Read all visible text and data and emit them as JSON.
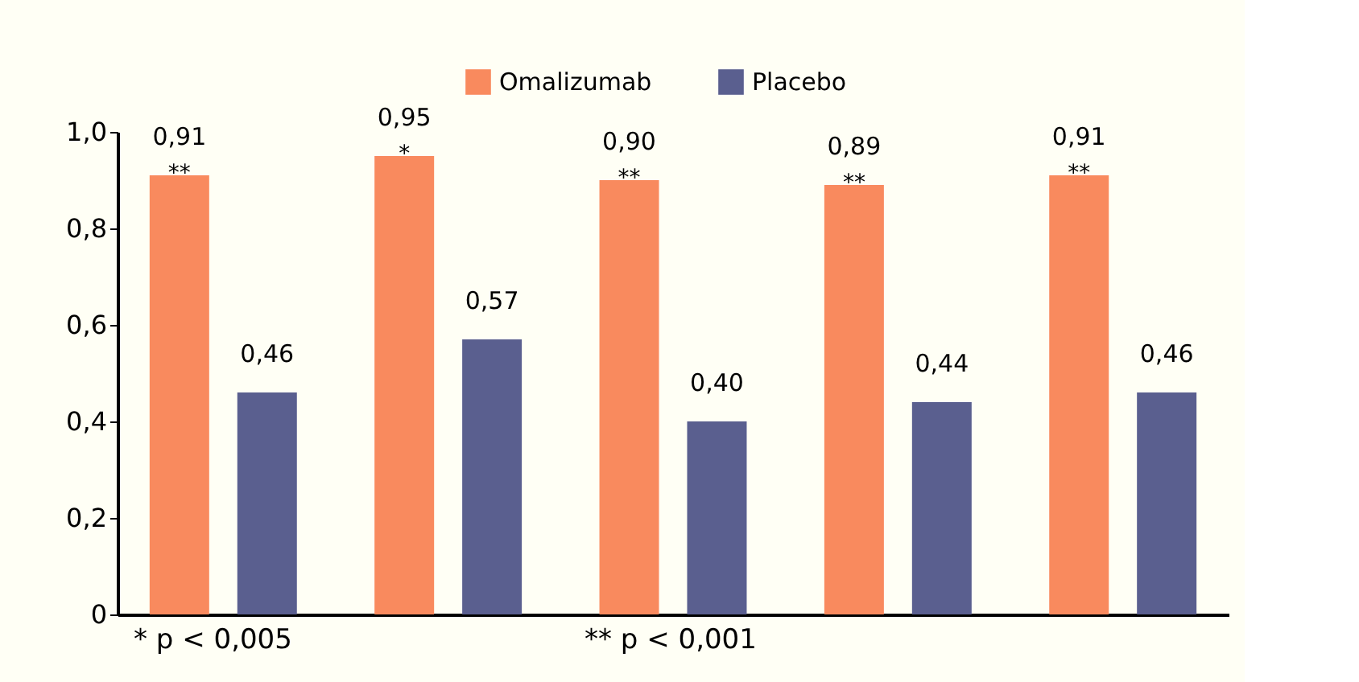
{
  "chart_data": {
    "type": "bar",
    "categories": [
      null,
      null,
      null,
      null,
      null
    ],
    "series": [
      {
        "name": "Omalizumab",
        "color": "#f98a5e",
        "values": [
          0.91,
          0.95,
          0.9,
          0.89,
          0.91
        ],
        "value_labels": [
          "0,91",
          "0,95",
          "0,90",
          "0,89",
          "0,91"
        ]
      },
      {
        "name": "Placebo",
        "color": "#5a5f8f",
        "values": [
          0.46,
          0.57,
          0.4,
          0.44,
          0.46
        ],
        "value_labels": [
          "0,46",
          "0,57",
          "0,40",
          "0,44",
          "0,46"
        ]
      }
    ],
    "ylim": [
      0,
      1.0
    ],
    "yticks": [
      0,
      {
        "value": 0.2,
        "label": "0,2"
      },
      {
        "value": 0.4,
        "label": "0,4"
      },
      {
        "value": 0.6,
        "label": "0,6"
      },
      {
        "value": 0.8,
        "label": "0,8"
      },
      {
        "value": 1.0,
        "label": "1,0"
      }
    ],
    "annotations": [
      {
        "text": "**",
        "y": 0.91
      },
      {
        "text": "*",
        "y": 0.95
      },
      {
        "text": "**",
        "y": 0.9
      },
      {
        "text": "**",
        "y": 0.89
      },
      {
        "text": "**",
        "y": 0.91
      },
      "* p < 0,005",
      "** p < 0,001"
    ],
    "grid": false,
    "legend": "top"
  }
}
